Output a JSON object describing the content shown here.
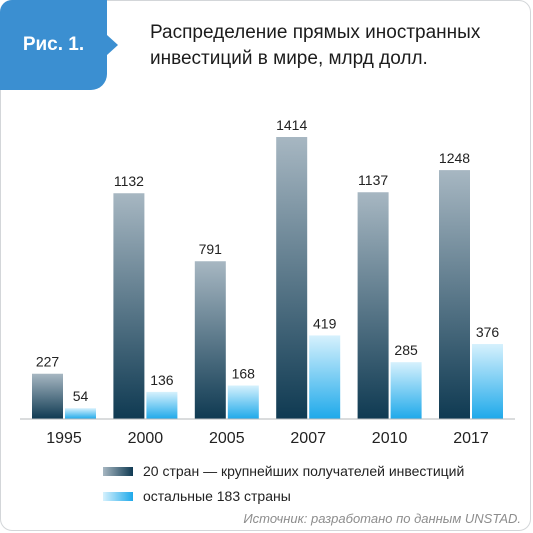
{
  "figure": {
    "label": "Рис. 1.",
    "title": "Распределение прямых иностранных инвестиций в мире, млрд долл."
  },
  "colors": {
    "accent": "#3b8fd1",
    "series1_top": "#a7b7c2",
    "series1_bottom": "#0f3a52",
    "series2_top": "#d6f1fd",
    "series2_bottom": "#1ea9ea"
  },
  "chart_data": {
    "type": "bar",
    "categories": [
      "1995",
      "2000",
      "2005",
      "2007",
      "2010",
      "2017"
    ],
    "series": [
      {
        "name": "20 стран — крупнейших получателей инвестиций",
        "values": [
          227,
          1132,
          791,
          1414,
          1137,
          1248
        ]
      },
      {
        "name": "остальные 183 страны",
        "values": [
          54,
          136,
          168,
          419,
          285,
          376
        ]
      }
    ],
    "ylim": [
      0,
      1414
    ],
    "data_labels": true,
    "legend_position": "bottom",
    "grid": false
  },
  "legend": [
    {
      "label": "20 стран — крупнейших получателей инвестиций"
    },
    {
      "label": "остальные 183 страны"
    }
  ],
  "source": "Источник: разработано по данным UNSTAD."
}
